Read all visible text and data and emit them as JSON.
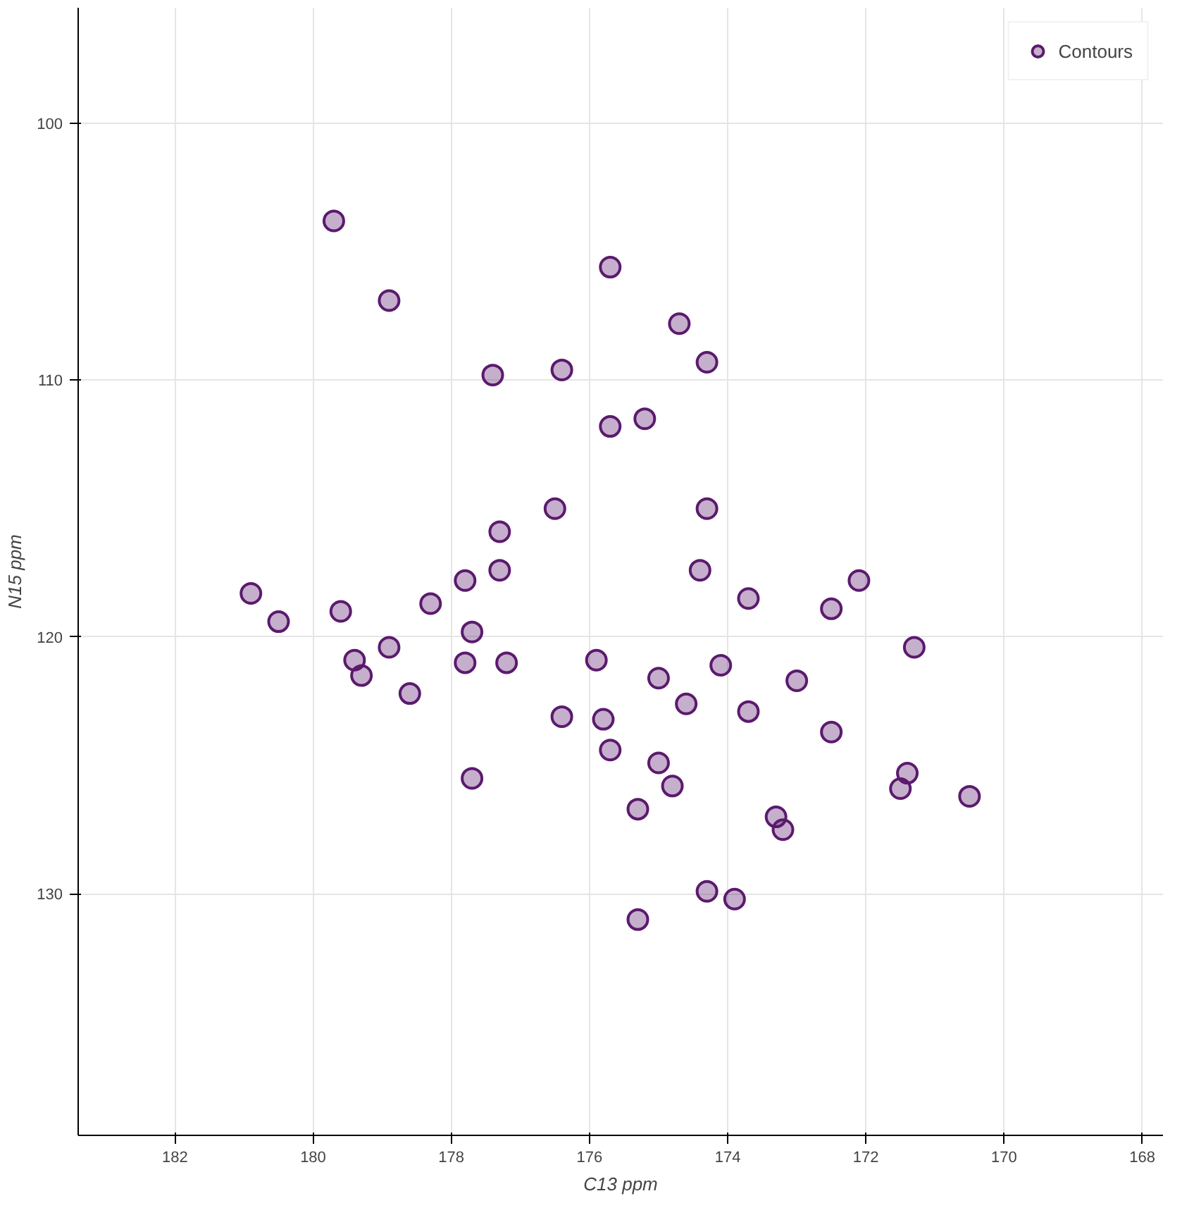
{
  "chart_data": {
    "type": "scatter",
    "xlabel": "C13 ppm",
    "ylabel": "N15 ppm",
    "xlim": [
      183.4,
      167.7
    ],
    "ylim": [
      139.4,
      95.5
    ],
    "xticks": [
      182,
      180,
      178,
      176,
      174,
      172,
      170,
      168
    ],
    "yticks": [
      100,
      110,
      120,
      130
    ],
    "grid": true,
    "legend": "top right",
    "marker": "circle",
    "series": [
      {
        "name": "Contours",
        "color": "#5b1a6e",
        "x": [
          179.7,
          178.9,
          175.7,
          174.7,
          174.3,
          177.4,
          176.4,
          175.7,
          175.2,
          174.3,
          176.5,
          177.3,
          177.3,
          174.4,
          177.8,
          180.9,
          178.3,
          179.6,
          180.5,
          173.7,
          172.5,
          172.1,
          171.3,
          178.9,
          177.7,
          179.4,
          179.3,
          177.8,
          177.2,
          175.9,
          175.0,
          174.6,
          174.1,
          178.6,
          176.4,
          175.8,
          173.7,
          173.0,
          172.5,
          175.7,
          175.0,
          174.8,
          177.7,
          171.5,
          171.4,
          170.5,
          175.3,
          173.3,
          173.2,
          174.3,
          173.9,
          175.3
        ],
        "values": [
          103.8,
          106.9,
          105.6,
          107.8,
          109.3,
          109.8,
          109.6,
          111.8,
          111.5,
          115.0,
          115.0,
          115.9,
          117.4,
          117.4,
          117.8,
          118.3,
          118.7,
          119.0,
          119.4,
          118.5,
          118.9,
          117.8,
          120.4,
          120.4,
          119.8,
          120.9,
          121.5,
          121.0,
          121.0,
          120.9,
          121.6,
          122.6,
          121.1,
          122.2,
          123.1,
          123.2,
          122.9,
          121.7,
          123.7,
          124.4,
          124.9,
          125.8,
          125.5,
          125.9,
          125.3,
          126.2,
          126.7,
          127.0,
          127.5,
          129.9,
          130.2,
          131.0
        ]
      }
    ]
  }
}
